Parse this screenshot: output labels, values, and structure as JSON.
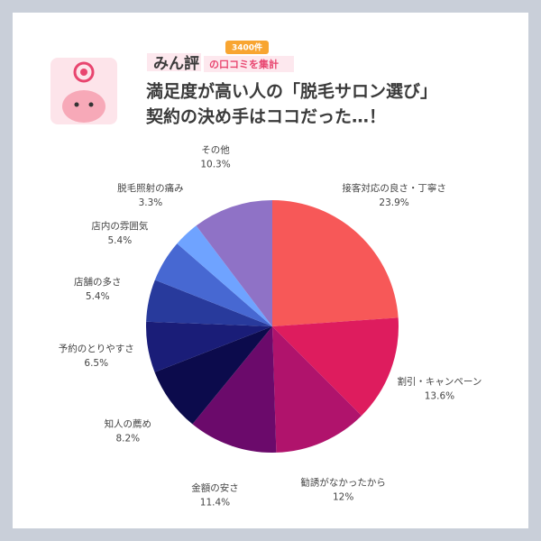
{
  "header": {
    "brand": "みん評",
    "badge": "3400件",
    "caption": "の口コミを集計",
    "title_lines": [
      "満足度が高い人の「脱毛サロン選び」",
      "契約の決め手はココだった…！"
    ]
  },
  "chart_data": {
    "type": "pie",
    "categories": [
      "接客対応の良さ・丁寧さ",
      "割引・キャンペーン",
      "勧誘がなかったから",
      "金額の安さ",
      "知人の薦め",
      "予約のとりやすさ",
      "店舗の多さ",
      "店内の雰囲気",
      "脱毛照射の痛み",
      "その他"
    ],
    "values": [
      23.9,
      13.6,
      12,
      11.4,
      8.2,
      6.5,
      5.4,
      5.4,
      3.3,
      10.3
    ],
    "value_labels": [
      "23.9%",
      "13.6%",
      "12%",
      "11.4%",
      "8.2%",
      "6.5%",
      "5.4%",
      "5.4%",
      "3.3%",
      "10.3%"
    ],
    "colors": [
      "#f75858",
      "#de1c5e",
      "#b0136c",
      "#6b0a6b",
      "#0c0b4c",
      "#1a1d78",
      "#283a9c",
      "#4768d2",
      "#6fa3ff",
      "#8f72c6"
    ]
  }
}
